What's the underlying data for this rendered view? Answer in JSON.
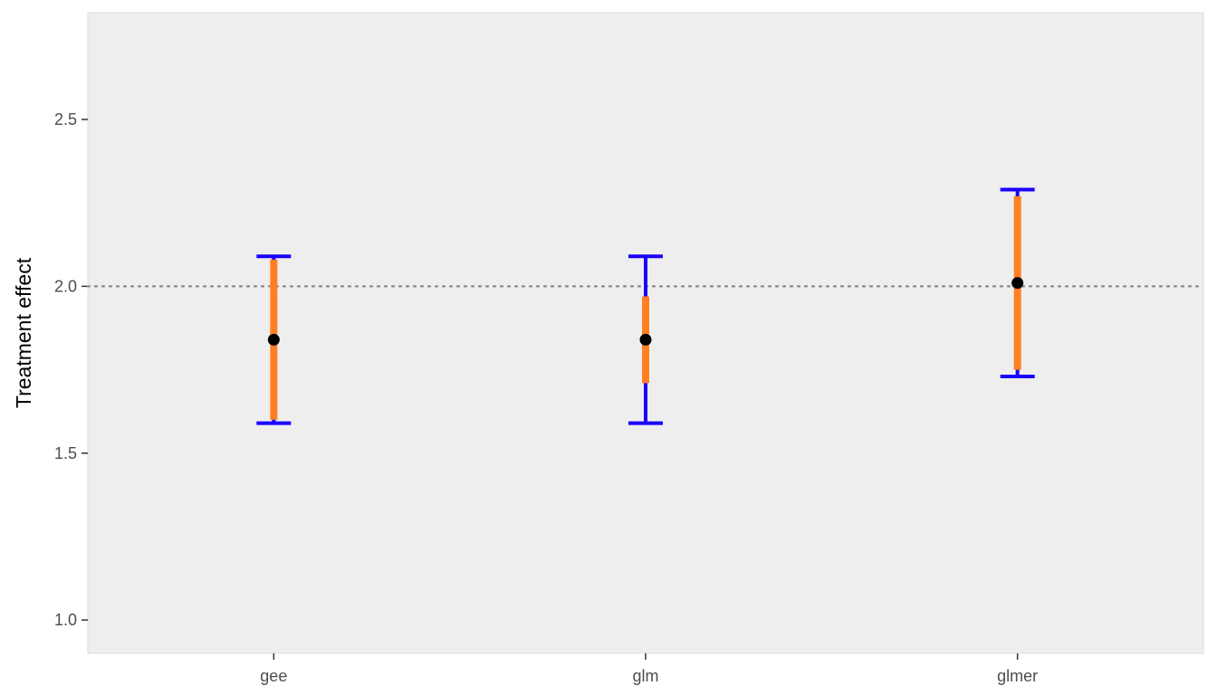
{
  "chart_data": {
    "type": "errorbar",
    "title": "",
    "xlabel": "",
    "ylabel": "Treatment effect",
    "ylim": [
      0.9,
      2.82
    ],
    "yticks": [
      1.0,
      1.5,
      2.0,
      2.5
    ],
    "ytick_labels": [
      "1.0",
      "1.5",
      "2.0",
      "2.5"
    ],
    "reference_line": 2.0,
    "grid": false,
    "legend": "none",
    "categories": [
      "gee",
      "glm",
      "glmer"
    ],
    "points": [
      {
        "category": "gee",
        "estimate": 1.84,
        "ci_low": 1.59,
        "ci_high": 2.09,
        "inner_low": 1.6,
        "inner_high": 2.08
      },
      {
        "category": "glm",
        "estimate": 1.84,
        "ci_low": 1.59,
        "ci_high": 2.09,
        "inner_low": 1.71,
        "inner_high": 1.97
      },
      {
        "category": "glmer",
        "estimate": 2.01,
        "ci_low": 1.73,
        "ci_high": 2.29,
        "inner_low": 1.75,
        "inner_high": 2.27
      }
    ],
    "colors": {
      "panel_background": "#eeeeee",
      "panel_border": "#dddddd",
      "outer_interval": "#1a00ff",
      "inner_interval": "#ff7f24",
      "estimate_point": "#000000",
      "reference_line": "#888888"
    }
  }
}
